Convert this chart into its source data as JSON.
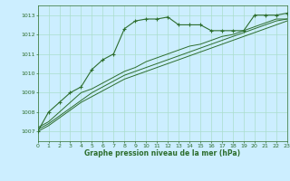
{
  "background_color": "#cceeff",
  "grid_color": "#aaddcc",
  "line_color": "#2d6e2d",
  "xlabel": "Graphe pression niveau de la mer (hPa)",
  "ylim": [
    1006.5,
    1013.5
  ],
  "xlim": [
    0,
    23
  ],
  "yticks": [
    1007,
    1008,
    1009,
    1010,
    1011,
    1012,
    1013
  ],
  "xticks": [
    0,
    1,
    2,
    3,
    4,
    5,
    6,
    7,
    8,
    9,
    10,
    11,
    12,
    13,
    14,
    15,
    16,
    17,
    18,
    19,
    20,
    21,
    22,
    23
  ],
  "series": [
    [
      1007.0,
      1008.0,
      1008.5,
      1009.0,
      1009.3,
      1010.2,
      1010.7,
      1011.0,
      1012.3,
      1012.7,
      1012.8,
      1012.8,
      1012.9,
      1012.5,
      1012.5,
      1012.5,
      1012.2,
      1012.2,
      1012.2,
      1012.2,
      1013.0,
      1013.0,
      1013.0,
      1013.1
    ],
    [
      1007.2,
      1007.5,
      1008.0,
      1008.5,
      1009.0,
      1009.2,
      1009.5,
      1009.8,
      1010.1,
      1010.3,
      1010.6,
      1010.8,
      1011.0,
      1011.2,
      1011.4,
      1011.5,
      1011.7,
      1011.9,
      1012.0,
      1012.2,
      1012.4,
      1012.6,
      1012.8,
      1012.8
    ],
    [
      1007.1,
      1007.4,
      1007.8,
      1008.2,
      1008.6,
      1009.0,
      1009.3,
      1009.6,
      1009.9,
      1010.1,
      1010.3,
      1010.5,
      1010.7,
      1010.9,
      1011.1,
      1011.3,
      1011.5,
      1011.7,
      1011.9,
      1012.1,
      1012.3,
      1012.5,
      1012.7,
      1012.8
    ],
    [
      1007.0,
      1007.3,
      1007.7,
      1008.1,
      1008.5,
      1008.8,
      1009.1,
      1009.4,
      1009.7,
      1009.9,
      1010.1,
      1010.3,
      1010.5,
      1010.7,
      1010.9,
      1011.1,
      1011.3,
      1011.5,
      1011.7,
      1011.9,
      1012.1,
      1012.3,
      1012.5,
      1012.7
    ]
  ]
}
